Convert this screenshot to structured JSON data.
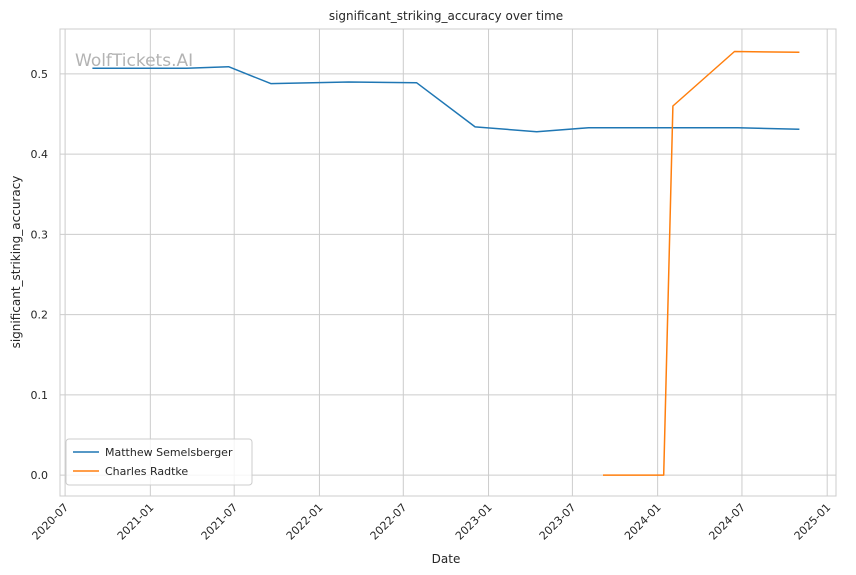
{
  "chart_data": {
    "type": "line",
    "title": "significant_striking_accuracy over time",
    "xlabel": "Date",
    "ylabel": "significant_striking_accuracy",
    "watermark": "WolfTickets.AI",
    "xlim": [
      "2020-06-20",
      "2025-01-20"
    ],
    "ylim": [
      -0.026,
      0.556
    ],
    "x_ticks": [
      "2020-07-01",
      "2021-01-01",
      "2021-07-01",
      "2022-01-01",
      "2022-07-01",
      "2023-01-01",
      "2023-07-01",
      "2024-01-01",
      "2024-07-01",
      "2025-01-01"
    ],
    "x_tick_labels": [
      "2020-07",
      "2021-01",
      "2021-07",
      "2022-01",
      "2022-07",
      "2023-01",
      "2023-07",
      "2024-01",
      "2024-07",
      "2025-01"
    ],
    "y_ticks": [
      0.0,
      0.1,
      0.2,
      0.3,
      0.4,
      0.5
    ],
    "y_tick_labels": [
      "0.0",
      "0.1",
      "0.2",
      "0.3",
      "0.4",
      "0.5"
    ],
    "grid": true,
    "legend_position": "bottom-left",
    "series": [
      {
        "name": "Matthew Semelsberger",
        "color": "#1f77b4",
        "points": [
          [
            "2020-08-29",
            0.507
          ],
          [
            "2021-03-20",
            0.507
          ],
          [
            "2021-06-19",
            0.509
          ],
          [
            "2021-09-18",
            0.488
          ],
          [
            "2022-03-05",
            0.49
          ],
          [
            "2022-07-30",
            0.489
          ],
          [
            "2022-12-03",
            0.434
          ],
          [
            "2023-04-15",
            0.428
          ],
          [
            "2023-08-05",
            0.433
          ],
          [
            "2024-06-22",
            0.433
          ],
          [
            "2024-11-02",
            0.431
          ]
        ]
      },
      {
        "name": "Charles Radtke",
        "color": "#ff7f0e",
        "points": [
          [
            "2023-09-05",
            0.0
          ],
          [
            "2024-01-14",
            0.0
          ],
          [
            "2024-02-03",
            0.46
          ],
          [
            "2024-06-15",
            0.528
          ],
          [
            "2024-11-02",
            0.527
          ]
        ]
      }
    ]
  }
}
